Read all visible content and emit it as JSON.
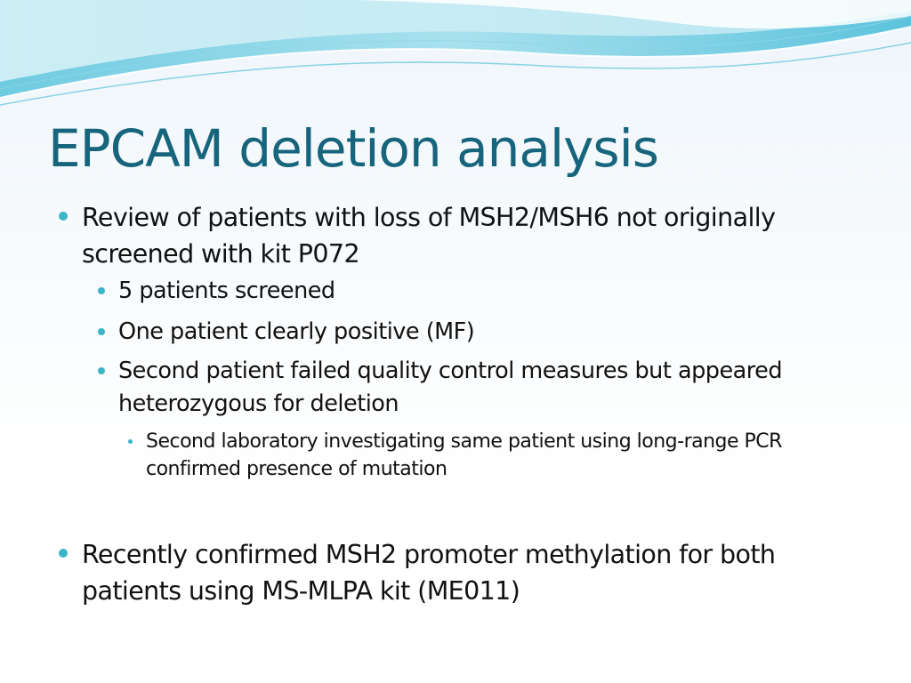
{
  "slide": {
    "title": "EPCAM deletion analysis",
    "bullets": {
      "b1": "Review of patients with loss of MSH2/MSH6 not originally screened with kit P072",
      "b1_1": "5 patients screened",
      "b1_2": "One patient clearly positive (MF)",
      "b1_3": "Second patient failed quality control measures but appeared heterozygous for deletion",
      "b1_3_1": "Second laboratory investigating same patient using long-range PCR confirmed presence of mutation",
      "b2": "Recently confirmed MSH2 promoter methylation for both patients using MS-MLPA kit (ME011)"
    }
  },
  "colors": {
    "title": "#17657d",
    "bullet": "#39b6c8",
    "body_text": "#111111",
    "wave_light": "#bfe8f2",
    "wave_mid": "#8fd6e8",
    "wave_dark": "#5cc3dc"
  }
}
